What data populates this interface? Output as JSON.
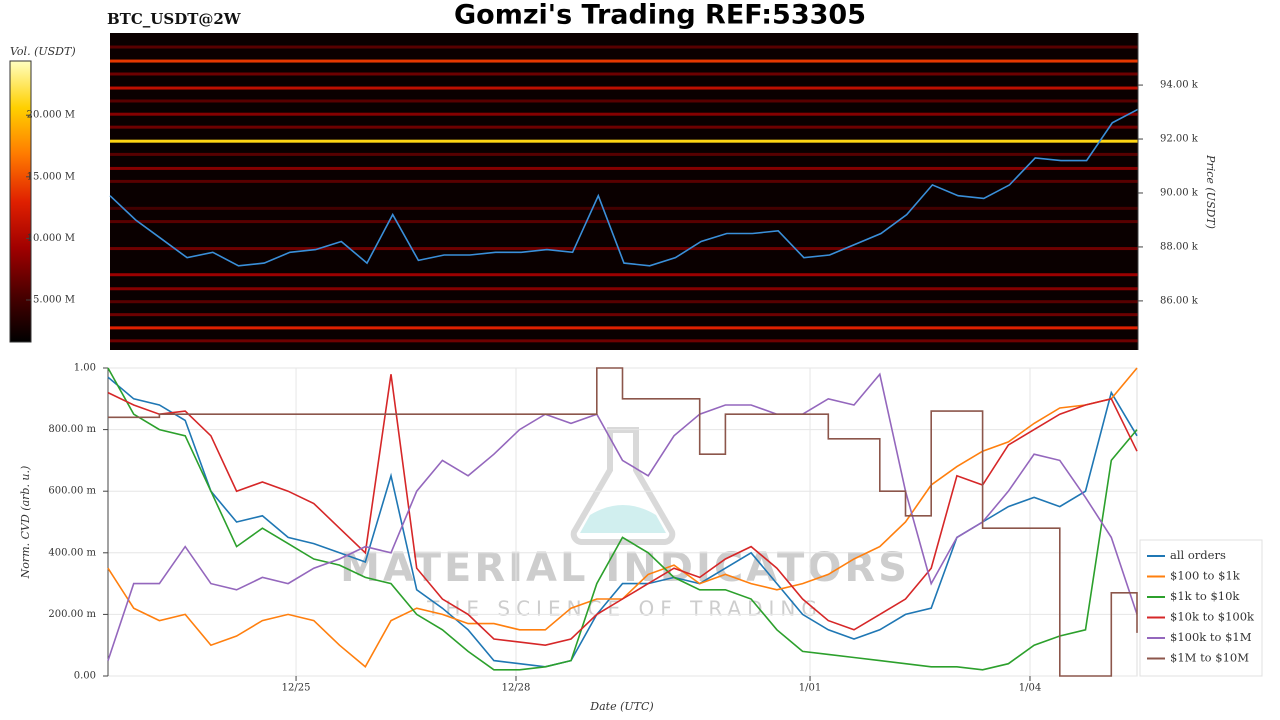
{
  "title": "Gomzi's Trading REF:53305",
  "symbol": "BTC_USDT@2W",
  "watermark": {
    "title": "MATERIAL INDICATORS",
    "subtitle": "THE SCIENCE OF TRADING"
  },
  "chart_data": [
    {
      "type": "heatmap",
      "ylabel": "Price (USDT)",
      "ylim": [
        84180,
        95930
      ],
      "xlim": [
        0,
        40
      ],
      "yticks": [
        {
          "value": 86000,
          "label": "86.00 k"
        },
        {
          "value": 88000,
          "label": "88.00 k"
        },
        {
          "value": 90000,
          "label": "90.00 k"
        },
        {
          "value": 92000,
          "label": "92.00 k"
        },
        {
          "value": 94000,
          "label": "94.00 k"
        }
      ],
      "colorbar": {
        "label": "Vol. (USDT)",
        "lim": [
          1590000,
          24400000
        ],
        "ticks": [
          {
            "value": 5000000,
            "label": "5.000 M"
          },
          {
            "value": 10000000,
            "label": "10.000 M"
          },
          {
            "value": 15000000,
            "label": "15.000 M"
          },
          {
            "value": 20000000,
            "label": "20.000 M"
          }
        ],
        "colorscale": [
          "#000000",
          "#4a0000",
          "#a00000",
          "#e02000",
          "#ff7a00",
          "#ffd000",
          "#ffffc0"
        ]
      },
      "levels": [
        {
          "price": 95410,
          "volume": 6000000
        },
        {
          "price": 94890,
          "volume": 14000000
        },
        {
          "price": 94410,
          "volume": 7000000
        },
        {
          "price": 93890,
          "volume": 11000000
        },
        {
          "price": 93410,
          "volume": 6000000
        },
        {
          "price": 92920,
          "volume": 8000000
        },
        {
          "price": 92440,
          "volume": 7000000
        },
        {
          "price": 91920,
          "volume": 21000000
        },
        {
          "price": 91430,
          "volume": 6000000
        },
        {
          "price": 90910,
          "volume": 8000000
        },
        {
          "price": 90430,
          "volume": 6000000
        },
        {
          "price": 89430,
          "volume": 5000000
        },
        {
          "price": 88940,
          "volume": 6000000
        },
        {
          "price": 87940,
          "volume": 7000000
        },
        {
          "price": 86970,
          "volume": 9000000
        },
        {
          "price": 86450,
          "volume": 8000000
        },
        {
          "price": 85970,
          "volume": 6000000
        },
        {
          "price": 85490,
          "volume": 7000000
        },
        {
          "price": 85000,
          "volume": 13000000
        },
        {
          "price": 84520,
          "volume": 7000000
        }
      ],
      "price": {
        "color": "#3a8fd9",
        "values": [
          89900,
          89000,
          88300,
          87600,
          87800,
          87300,
          87400,
          87800,
          87900,
          88200,
          87400,
          89200,
          87500,
          87700,
          87700,
          87800,
          87800,
          87900,
          87800,
          89900,
          87400,
          87300,
          87600,
          88200,
          88500,
          88500,
          88600,
          87600,
          87700,
          88100,
          88500,
          89200,
          90300,
          89900,
          89800,
          90300,
          91300,
          91200,
          91200,
          92600,
          93100
        ]
      }
    },
    {
      "type": "line",
      "xlabel": "Date (UTC)",
      "ylabel": "Norm. CVD (arb. u.)",
      "xlim": [
        0,
        40
      ],
      "ylim": [
        0,
        1
      ],
      "xticks": [
        {
          "value": 7.31,
          "label": "12/25"
        },
        {
          "value": 15.86,
          "label": "12/28"
        },
        {
          "value": 27.29,
          "label": "1/01"
        },
        {
          "value": 35.84,
          "label": "1/04"
        }
      ],
      "yticks": [
        {
          "value": 0,
          "label": "0.00"
        },
        {
          "value": 0.2,
          "label": "200.00 m"
        },
        {
          "value": 0.4,
          "label": "400.00 m"
        },
        {
          "value": 0.6,
          "label": "600.00 m"
        },
        {
          "value": 0.8,
          "label": "800.00 m"
        },
        {
          "value": 1,
          "label": "1.00"
        }
      ],
      "grid": true,
      "legend": "lower right",
      "series": [
        {
          "name": "all orders",
          "color": "#1f77b4",
          "values": [
            0.97,
            0.9,
            0.88,
            0.83,
            0.6,
            0.5,
            0.52,
            0.45,
            0.43,
            0.4,
            0.37,
            0.65,
            0.28,
            0.22,
            0.15,
            0.05,
            0.04,
            0.03,
            0.05,
            0.2,
            0.3,
            0.3,
            0.32,
            0.3,
            0.35,
            0.4,
            0.3,
            0.2,
            0.15,
            0.12,
            0.15,
            0.2,
            0.22,
            0.45,
            0.5,
            0.55,
            0.58,
            0.55,
            0.6,
            0.92,
            0.78
          ]
        },
        {
          "name": "$100 to $1k",
          "color": "#ff7f0e",
          "values": [
            0.35,
            0.22,
            0.18,
            0.2,
            0.1,
            0.13,
            0.18,
            0.2,
            0.18,
            0.1,
            0.03,
            0.18,
            0.22,
            0.2,
            0.17,
            0.17,
            0.15,
            0.15,
            0.22,
            0.25,
            0.25,
            0.33,
            0.36,
            0.3,
            0.33,
            0.3,
            0.28,
            0.3,
            0.33,
            0.38,
            0.42,
            0.5,
            0.62,
            0.68,
            0.73,
            0.76,
            0.82,
            0.87,
            0.88,
            0.9,
            1.0
          ]
        },
        {
          "name": "$1k to $10k",
          "color": "#2ca02c",
          "values": [
            1.0,
            0.85,
            0.8,
            0.78,
            0.6,
            0.42,
            0.48,
            0.43,
            0.38,
            0.36,
            0.32,
            0.3,
            0.2,
            0.15,
            0.08,
            0.02,
            0.02,
            0.03,
            0.05,
            0.3,
            0.45,
            0.4,
            0.32,
            0.28,
            0.28,
            0.25,
            0.15,
            0.08,
            0.07,
            0.06,
            0.05,
            0.04,
            0.03,
            0.03,
            0.02,
            0.04,
            0.1,
            0.13,
            0.15,
            0.7,
            0.8
          ]
        },
        {
          "name": "$10k to $100k",
          "color": "#d62728",
          "values": [
            0.92,
            0.88,
            0.85,
            0.86,
            0.78,
            0.6,
            0.63,
            0.6,
            0.56,
            0.48,
            0.4,
            0.98,
            0.35,
            0.25,
            0.2,
            0.12,
            0.11,
            0.1,
            0.12,
            0.2,
            0.25,
            0.3,
            0.35,
            0.32,
            0.38,
            0.42,
            0.35,
            0.25,
            0.18,
            0.15,
            0.2,
            0.25,
            0.35,
            0.65,
            0.62,
            0.75,
            0.8,
            0.85,
            0.88,
            0.9,
            0.73
          ]
        },
        {
          "name": "$100k to $1M",
          "color": "#9467bd",
          "values": [
            0.05,
            0.3,
            0.3,
            0.42,
            0.3,
            0.28,
            0.32,
            0.3,
            0.35,
            0.38,
            0.42,
            0.4,
            0.6,
            0.7,
            0.65,
            0.72,
            0.8,
            0.85,
            0.82,
            0.85,
            0.7,
            0.65,
            0.78,
            0.85,
            0.88,
            0.88,
            0.85,
            0.85,
            0.9,
            0.88,
            0.98,
            0.6,
            0.3,
            0.45,
            0.5,
            0.6,
            0.72,
            0.7,
            0.58,
            0.45,
            0.2
          ]
        },
        {
          "name": "$1M to $10M",
          "color": "#8c564b",
          "step": true,
          "values": [
            0.84,
            0.84,
            0.85,
            0.85,
            0.85,
            0.85,
            0.85,
            0.85,
            0.85,
            0.85,
            0.85,
            0.85,
            0.85,
            0.85,
            0.85,
            0.85,
            0.85,
            0.85,
            0.85,
            1.0,
            0.9,
            0.9,
            0.9,
            0.72,
            0.85,
            0.85,
            0.85,
            0.85,
            0.77,
            0.77,
            0.6,
            0.52,
            0.86,
            0.86,
            0.48,
            0.48,
            0.48,
            0.0,
            0.0,
            0.27,
            0.14
          ]
        }
      ]
    }
  ]
}
